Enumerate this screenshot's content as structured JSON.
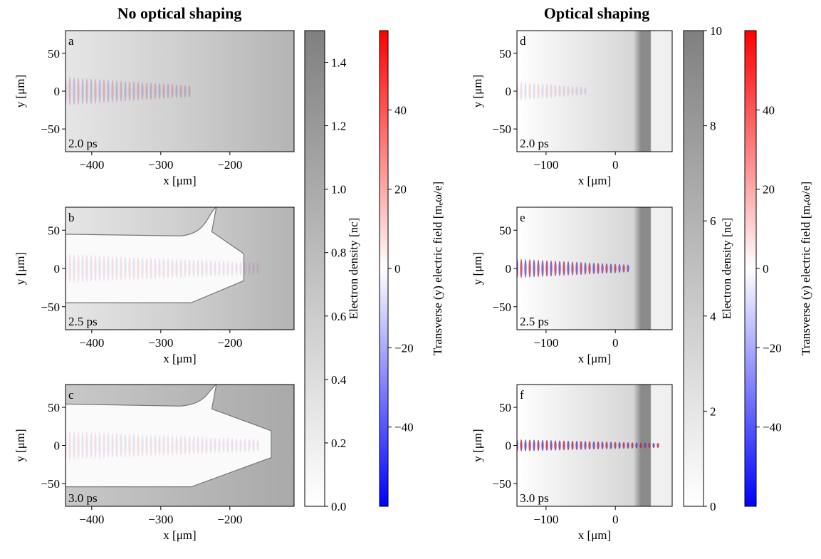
{
  "column_titles": [
    "No optical shaping",
    "Optical shaping"
  ],
  "chart_data": [
    {
      "type": "image",
      "panel_label": "a",
      "time": "2.0 ps",
      "xlabel": "x [μm]",
      "ylabel": "y [μm]",
      "xlim": [
        -438,
        -107
      ],
      "ylim": [
        -80,
        80
      ],
      "xticks": [
        {
          "value": -400,
          "label": "−400"
        },
        {
          "value": -300,
          "label": "−300"
        },
        {
          "value": -200,
          "label": "−200"
        }
      ],
      "yticks": [
        {
          "value": -50,
          "label": "−50"
        },
        0,
        50
      ]
    },
    {
      "type": "image",
      "panel_label": "b",
      "time": "2.5 ps",
      "xlabel": "x [μm]",
      "ylabel": "y [μm]",
      "xlim": [
        -438,
        -107
      ],
      "ylim": [
        -80,
        80
      ],
      "xticks": [
        {
          "value": -400,
          "label": "−400"
        },
        {
          "value": -300,
          "label": "−300"
        },
        {
          "value": -200,
          "label": "−200"
        }
      ],
      "yticks": [
        {
          "value": -50,
          "label": "−50"
        },
        0,
        50
      ]
    },
    {
      "type": "image",
      "panel_label": "c",
      "time": "3.0 ps",
      "xlabel": "x [μm]",
      "ylabel": "y [μm]",
      "xlim": [
        -438,
        -107
      ],
      "ylim": [
        -80,
        80
      ],
      "xticks": [
        {
          "value": -400,
          "label": "−400"
        },
        {
          "value": -300,
          "label": "−300"
        },
        {
          "value": -200,
          "label": "−200"
        }
      ],
      "yticks": [
        {
          "value": -50,
          "label": "−50"
        },
        0,
        50
      ]
    },
    {
      "type": "image",
      "panel_label": "d",
      "time": "2.0 ps",
      "xlabel": "x [μm]",
      "ylabel": "y [μm]",
      "xlim": [
        -142,
        82
      ],
      "ylim": [
        -80,
        80
      ],
      "xticks": [
        {
          "value": -100,
          "label": "−100"
        },
        0
      ],
      "yticks": [
        {
          "value": -50,
          "label": "−50"
        },
        0,
        50
      ]
    },
    {
      "type": "image",
      "panel_label": "e",
      "time": "2.5 ps",
      "xlabel": "x [μm]",
      "ylabel": "y [μm]",
      "xlim": [
        -142,
        82
      ],
      "ylim": [
        -80,
        80
      ],
      "xticks": [
        {
          "value": -100,
          "label": "−100"
        },
        0
      ],
      "yticks": [
        {
          "value": -50,
          "label": "−50"
        },
        0,
        50
      ]
    },
    {
      "type": "image",
      "panel_label": "f",
      "time": "3.0 ps",
      "xlabel": "x [μm]",
      "ylabel": "y [μm]",
      "xlim": [
        -142,
        82
      ],
      "ylim": [
        -80,
        80
      ],
      "xticks": [
        {
          "value": -100,
          "label": "−100"
        },
        0
      ],
      "yticks": [
        {
          "value": -50,
          "label": "−50"
        },
        0,
        50
      ]
    },
    {
      "type": "colorbar",
      "label": "Electron density [nc]",
      "colors": [
        "#ffffff",
        "#808080"
      ],
      "ylim": [
        0,
        1.5
      ],
      "yticks": [
        {
          "value": 0,
          "label": "0.0"
        },
        0.2,
        0.4,
        0.6,
        0.8,
        {
          "value": 1,
          "label": "1.0"
        },
        1.2,
        1.4
      ]
    },
    {
      "type": "colorbar",
      "label": "Transverse (y) electric field [mₑω/e]",
      "colors": [
        "#0000ff",
        "#ffffff",
        "#ff0000"
      ],
      "ylim": [
        -60,
        60
      ],
      "yticks": [
        {
          "value": -40,
          "label": "−40"
        },
        {
          "value": -20,
          "label": "−20"
        },
        0,
        20,
        40
      ]
    },
    {
      "type": "colorbar",
      "label": "Electron density [nc]",
      "colors": [
        "#ffffff",
        "#808080"
      ],
      "ylim": [
        0,
        10
      ],
      "yticks": [
        0,
        2,
        4,
        6,
        8,
        10
      ]
    },
    {
      "type": "colorbar",
      "label": "Transverse (y) electric field [mₑω/e]",
      "colors": [
        "#0000ff",
        "#ffffff",
        "#ff0000"
      ],
      "ylim": [
        -60,
        60
      ],
      "yticks": [
        {
          "value": -40,
          "label": "−40"
        },
        {
          "value": -20,
          "label": "−20"
        },
        0,
        20,
        40
      ]
    }
  ]
}
